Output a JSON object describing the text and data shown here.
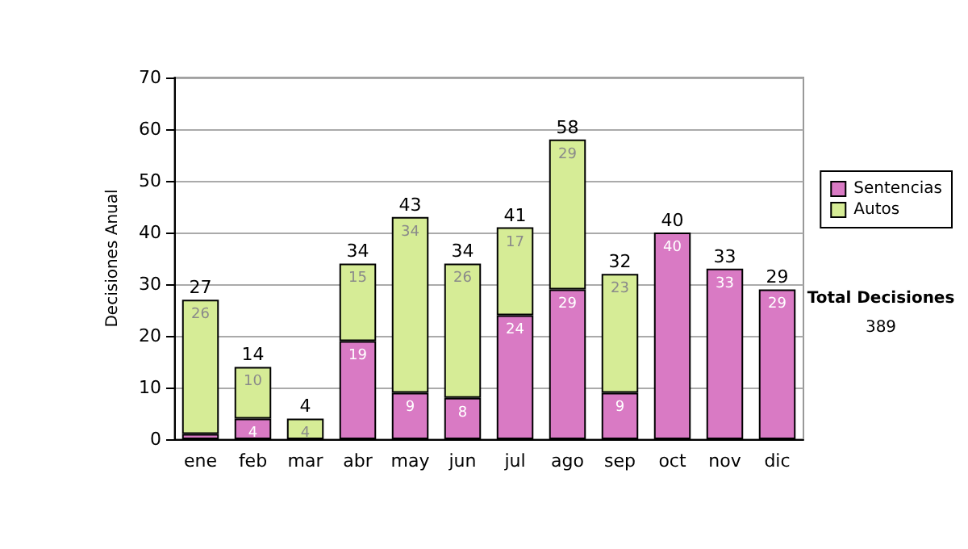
{
  "chart_data": {
    "type": "bar",
    "stacked": true,
    "ylabel": "Decisiones Anual",
    "categories": [
      "ene",
      "feb",
      "mar",
      "abr",
      "may",
      "jun",
      "jul",
      "ago",
      "sep",
      "oct",
      "nov",
      "dic"
    ],
    "series": [
      {
        "name": "Sentencias",
        "color": "#d97ac4",
        "values": [
          1,
          4,
          0,
          19,
          9,
          8,
          24,
          29,
          9,
          40,
          33,
          29
        ],
        "value_labels": [
          null,
          "4",
          null,
          "19",
          "9",
          "8",
          "24",
          "29",
          "9",
          "40",
          "33",
          "29"
        ]
      },
      {
        "name": "Autos",
        "color": "#d6ec96",
        "values": [
          26,
          10,
          4,
          15,
          34,
          26,
          17,
          29,
          23,
          0,
          0,
          0
        ],
        "value_labels": [
          "26",
          "10",
          "4",
          "15",
          "34",
          "26",
          "17",
          "29",
          "23",
          null,
          null,
          null
        ]
      }
    ],
    "totals": [
      "27",
      "14",
      "4",
      "34",
      "43",
      "34",
      "41",
      "58",
      "32",
      "40",
      "33",
      "29"
    ],
    "ylim": [
      0,
      70
    ],
    "yticks": [
      0,
      10,
      20,
      30,
      40,
      50,
      60,
      70
    ],
    "grid": "y",
    "legend": "right",
    "annotations": [
      "Total Decisiones",
      "389"
    ]
  }
}
